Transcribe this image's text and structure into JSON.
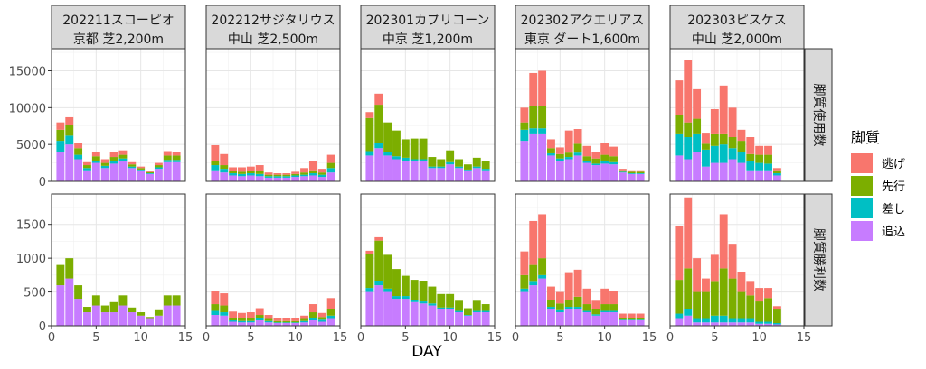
{
  "chart_data": {
    "type": "bar",
    "stacked": true,
    "xlabel": "DAY",
    "xlim": [
      0,
      15
    ],
    "x_ticks": [
      0,
      5,
      10,
      15
    ],
    "legend": {
      "title": "脚質",
      "placement": "right",
      "items": [
        {
          "name": "逃げ",
          "color": "#F8766D"
        },
        {
          "name": "先行",
          "color": "#7CAE00"
        },
        {
          "name": "差し",
          "color": "#00BFC4"
        },
        {
          "name": "追込",
          "color": "#C77CFF"
        }
      ]
    },
    "columns": [
      {
        "line1": "202211スコーピオ",
        "line2": "京都 芝2,200m"
      },
      {
        "line1": "202212サジタリウス",
        "line2": "中山 芝2,500m"
      },
      {
        "line1": "202301カプリコーン",
        "line2": "中京 芝1,200m"
      },
      {
        "line1": "202302アクエリアス",
        "line2": "東京 ダート1,600m"
      },
      {
        "line1": "202303ピスケス",
        "line2": "中山 芝2,000m"
      }
    ],
    "rows": [
      {
        "label": "脚質使用数",
        "ylim": [
          0,
          18000
        ],
        "y_ticks": [
          "0",
          "5000",
          "10000",
          "15000"
        ]
      },
      {
        "label": "脚質勝利数",
        "ylim": [
          0,
          1950
        ],
        "y_ticks": [
          "0",
          "500",
          "1000",
          "1500"
        ]
      }
    ],
    "series_order": [
      "追込",
      "差し",
      "先行",
      "逃げ"
    ],
    "panels": [
      [
        {
          "days": [
            1,
            2,
            3,
            4,
            5,
            6,
            7,
            8,
            9,
            10,
            11,
            12,
            13,
            14
          ],
          "values": {
            "追込": [
              4000,
              5000,
              3000,
              1500,
              2500,
              1800,
              2400,
              2800,
              1800,
              1500,
              1000,
              1700,
              2600,
              2600
            ],
            "差し": [
              1500,
              1200,
              600,
              300,
              300,
              300,
              300,
              300,
              200,
              100,
              100,
              200,
              300,
              300
            ],
            "先行": [
              1500,
              1500,
              900,
              400,
              600,
              400,
              600,
              500,
              300,
              200,
              150,
              300,
              600,
              600
            ],
            "逃げ": [
              1000,
              1000,
              700,
              400,
              600,
              500,
              700,
              600,
              300,
              200,
              150,
              300,
              600,
              500
            ]
          }
        },
        {
          "days": [
            1,
            2,
            3,
            4,
            5,
            6,
            7,
            8,
            9,
            10,
            11,
            12,
            13,
            14
          ],
          "values": {
            "追込": [
              1500,
              1200,
              800,
              700,
              800,
              700,
              500,
              500,
              500,
              600,
              700,
              800,
              600,
              1200
            ],
            "差し": [
              700,
              500,
              300,
              300,
              300,
              300,
              200,
              200,
              200,
              200,
              200,
              300,
              300,
              600
            ],
            "先行": [
              500,
              500,
              300,
              300,
              300,
              400,
              200,
              200,
              200,
              200,
              300,
              400,
              300,
              700
            ],
            "逃げ": [
              2200,
              1500,
              500,
              600,
              600,
              800,
              300,
              200,
              200,
              300,
              600,
              1300,
              500,
              1100
            ]
          }
        },
        {
          "days": [
            1,
            2,
            3,
            4,
            5,
            6,
            7,
            8,
            9,
            10,
            11,
            12,
            13,
            14
          ],
          "values": {
            "追込": [
              3500,
              4500,
              3500,
              3000,
              2800,
              2700,
              2700,
              1800,
              1800,
              2300,
              1800,
              1500,
              1800,
              1500
            ],
            "差し": [
              600,
              700,
              500,
              400,
              400,
              300,
              300,
              200,
              200,
              300,
              200,
              100,
              200,
              200
            ],
            "先行": [
              4500,
              5200,
              4000,
              3500,
              2500,
              2800,
              2800,
              1300,
              1000,
              1600,
              1000,
              700,
              1200,
              1100
            ],
            "逃げ": [
              800,
              1500,
              0,
              0,
              0,
              0,
              0,
              0,
              0,
              0,
              0,
              0,
              0,
              0
            ]
          }
        },
        {
          "days": [
            1,
            2,
            3,
            4,
            5,
            6,
            7,
            8,
            9,
            10,
            11,
            12,
            13,
            14
          ],
          "values": {
            "追込": [
              5500,
              6500,
              6500,
              3500,
              2800,
              3000,
              3500,
              2500,
              2200,
              2400,
              2300,
              1200,
              1000,
              1000
            ],
            "差し": [
              1500,
              700,
              700,
              300,
              300,
              300,
              400,
              200,
              200,
              300,
              300,
              100,
              100,
              100
            ],
            "先行": [
              1000,
              3000,
              3000,
              700,
              600,
              600,
              1200,
              700,
              700,
              900,
              800,
              200,
              200,
              200
            ],
            "逃げ": [
              2000,
              4500,
              4800,
              1200,
              900,
              3000,
              2000,
              1400,
              900,
              1600,
              1300,
              200,
              200,
              200
            ]
          }
        },
        {
          "days": [
            1,
            2,
            3,
            4,
            5,
            6,
            7,
            8,
            9,
            10,
            11,
            12
          ],
          "values": {
            "追込": [
              3500,
              3000,
              4000,
              2000,
              2500,
              2500,
              3000,
              2500,
              1500,
              1500,
              1500,
              800
            ],
            "差し": [
              3000,
              3000,
              2500,
              2300,
              2300,
              2500,
              1500,
              1500,
              1200,
              1000,
              900,
              300
            ],
            "先行": [
              2500,
              2000,
              2000,
              800,
              1700,
              1500,
              1500,
              1500,
              1000,
              1100,
              1200,
              400
            ],
            "逃げ": [
              4700,
              8500,
              4000,
              1500,
              3300,
              6500,
              4000,
              1500,
              2300,
              1200,
              1200,
              300
            ]
          }
        }
      ],
      [
        {
          "days": [
            1,
            2,
            3,
            4,
            5,
            6,
            7,
            8,
            9,
            10,
            11,
            12,
            13,
            14
          ],
          "values": {
            "追込": [
              600,
              700,
              400,
              200,
              300,
              200,
              200,
              300,
              200,
              150,
              100,
              150,
              300,
              300
            ],
            "差し": [
              0,
              0,
              0,
              0,
              0,
              0,
              0,
              0,
              0,
              0,
              0,
              0,
              0,
              0
            ],
            "先行": [
              300,
              300,
              200,
              80,
              150,
              100,
              150,
              150,
              70,
              50,
              30,
              80,
              150,
              150
            ],
            "逃げ": [
              0,
              0,
              0,
              0,
              0,
              0,
              0,
              0,
              0,
              0,
              0,
              0,
              0,
              0
            ]
          }
        },
        {
          "days": [
            1,
            2,
            3,
            4,
            5,
            6,
            7,
            8,
            9,
            10,
            11,
            12,
            13,
            14
          ],
          "values": {
            "追込": [
              160,
              150,
              60,
              50,
              50,
              80,
              50,
              40,
              40,
              40,
              50,
              80,
              60,
              100
            ],
            "差し": [
              60,
              50,
              20,
              20,
              20,
              30,
              20,
              10,
              10,
              10,
              20,
              40,
              30,
              50
            ],
            "先行": [
              100,
              100,
              40,
              40,
              40,
              50,
              30,
              20,
              20,
              20,
              30,
              80,
              40,
              100
            ],
            "逃げ": [
              200,
              180,
              90,
              80,
              90,
              100,
              60,
              40,
              40,
              40,
              50,
              120,
              60,
              160
            ]
          }
        },
        {
          "days": [
            1,
            2,
            3,
            4,
            5,
            6,
            7,
            8,
            9,
            10,
            11,
            12,
            13,
            14
          ],
          "values": {
            "追込": [
              500,
              600,
              500,
              400,
              400,
              350,
              330,
              300,
              250,
              250,
              200,
              150,
              200,
              200
            ],
            "差し": [
              60,
              60,
              50,
              40,
              40,
              30,
              30,
              30,
              20,
              20,
              20,
              10,
              20,
              20
            ],
            "先行": [
              500,
              600,
              500,
              400,
              300,
              300,
              300,
              250,
              200,
              200,
              150,
              100,
              150,
              100
            ],
            "逃げ": [
              50,
              50,
              0,
              0,
              0,
              0,
              0,
              0,
              0,
              0,
              0,
              0,
              0,
              0
            ]
          }
        },
        {
          "days": [
            1,
            2,
            3,
            4,
            5,
            6,
            7,
            8,
            9,
            10,
            11,
            12,
            13,
            14
          ],
          "values": {
            "追込": [
              500,
              600,
              700,
              250,
              200,
              250,
              250,
              200,
              150,
              200,
              200,
              80,
              80,
              80
            ],
            "差し": [
              50,
              50,
              50,
              30,
              30,
              30,
              30,
              20,
              20,
              20,
              20,
              10,
              10,
              10
            ],
            "先行": [
              200,
              250,
              250,
              100,
              100,
              100,
              150,
              100,
              80,
              100,
              100,
              30,
              30,
              30
            ],
            "逃げ": [
              350,
              650,
              650,
              200,
              170,
              400,
              400,
              230,
              120,
              230,
              200,
              60,
              60,
              60
            ]
          }
        },
        {
          "days": [
            1,
            2,
            3,
            4,
            5,
            6,
            7,
            8,
            9,
            10,
            11,
            12
          ],
          "values": {
            "追込": [
              100,
              150,
              50,
              50,
              50,
              50,
              50,
              50,
              50,
              30,
              30,
              20
            ],
            "差し": [
              80,
              100,
              50,
              50,
              100,
              100,
              50,
              50,
              50,
              30,
              30,
              20
            ],
            "先行": [
              500,
              600,
              400,
              400,
              500,
              700,
              600,
              400,
              350,
              300,
              350,
              200
            ],
            "逃げ": [
              800,
              1050,
              500,
              200,
              400,
              800,
              500,
              300,
              200,
              200,
              150,
              50
            ]
          }
        }
      ]
    ]
  }
}
